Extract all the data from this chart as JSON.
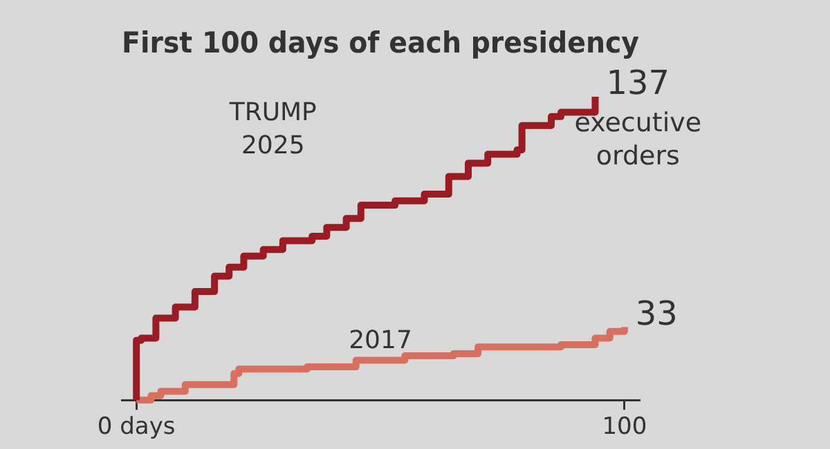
{
  "chart_data": {
    "type": "step",
    "title": "First 100 days of each presidency",
    "annotations": [
      "executive orders"
    ],
    "series": [
      {
        "name": "TRUMP\n2025",
        "color": "#9b1b24",
        "x": [
          0,
          0,
          1,
          4,
          8,
          12,
          16,
          19,
          22,
          26,
          30,
          36,
          39,
          43,
          46,
          53,
          59,
          64,
          68,
          72,
          78,
          79,
          85,
          87,
          94
        ],
        "values": [
          0,
          27,
          28,
          37,
          42,
          49,
          56,
          60,
          65,
          68,
          72,
          74,
          78,
          82,
          88,
          90,
          93,
          101,
          107,
          111,
          113,
          124,
          128,
          130,
          137
        ],
        "value_labels": [
          null,
          null,
          null,
          null,
          null,
          null,
          null,
          null,
          null,
          null,
          null,
          null,
          null,
          null,
          null,
          null,
          null,
          null,
          null,
          null,
          null,
          null,
          null,
          null,
          "137"
        ]
      },
      {
        "name": "2017",
        "color": "#d9705f",
        "x": [
          0,
          3,
          5,
          10,
          20,
          21,
          35,
          45,
          55,
          65,
          70,
          87,
          94,
          97,
          100
        ],
        "values": [
          0,
          2,
          4,
          7,
          12,
          14,
          15,
          18,
          20,
          21,
          24,
          25,
          28,
          31,
          33
        ],
        "value_labels": [
          null,
          null,
          null,
          null,
          null,
          null,
          null,
          null,
          null,
          null,
          null,
          null,
          null,
          null,
          "33"
        ]
      }
    ],
    "xlim": [
      -3,
      103
    ],
    "xticks": [
      {
        "value": 0,
        "label": "0 days"
      },
      100
    ],
    "tick_labels": "x",
    "grid": false,
    "legend": false,
    "marker": "none"
  }
}
